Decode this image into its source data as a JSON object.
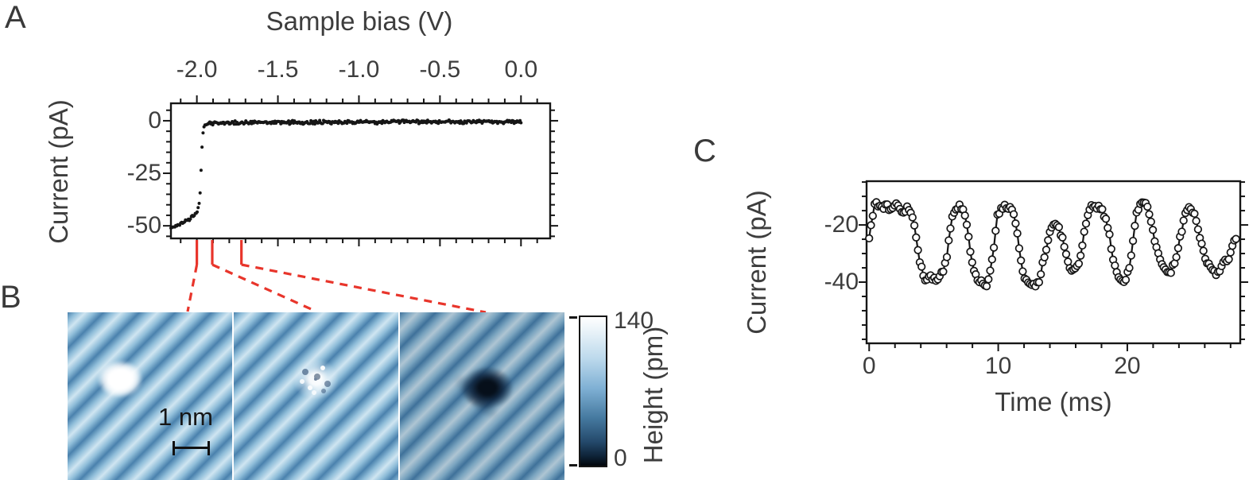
{
  "panels": {
    "a": {
      "label": "A",
      "title": "Sample bias (V)",
      "ylabel": "Current (pA)"
    },
    "b": {
      "label": "B",
      "scalebar": "1 nm",
      "colorbar_max": "140",
      "colorbar_min": "0",
      "colorbar_label": "Height (pm)"
    },
    "c": {
      "label": "C",
      "ylabel": "Current (pA)",
      "xlabel": "Time (ms)"
    }
  },
  "colors": {
    "accent_red": "#e8352b",
    "ink": "#161616",
    "label_gray": "#3d3d3d"
  },
  "annotations": {
    "bias_marks": [
      -2.0,
      -1.905,
      -1.725
    ]
  },
  "chart_data": [
    {
      "type": "scatter",
      "panel": "A",
      "title": "Sample bias (V)",
      "xlabel": "Sample bias (V)",
      "ylabel": "Current (pA)",
      "xlim": [
        -2.16,
        0.18
      ],
      "ylim": [
        -56.0,
        8.3
      ],
      "x_ticks": [
        -2.0,
        -1.5,
        -1.0,
        -0.5,
        0.0
      ],
      "x_tick_labels": [
        "-2.0",
        "-1.5",
        "-1.0",
        "-0.5",
        "0.0"
      ],
      "y_ticks": [
        0,
        -25,
        -50
      ],
      "y_tick_labels": [
        "0",
        "-25",
        "-50"
      ],
      "x_minor_step": 0.1,
      "y_minor_step": 5,
      "marker": "dot",
      "connect": false,
      "noise": 0.55,
      "sample_step": 0.006,
      "series_anchors": [
        [
          -2.16,
          -51.0
        ],
        [
          -2.14,
          -50.3
        ],
        [
          -2.12,
          -49.8
        ],
        [
          -2.1,
          -49.2
        ],
        [
          -2.08,
          -48.3
        ],
        [
          -2.06,
          -47.6
        ],
        [
          -2.04,
          -46.6
        ],
        [
          -2.02,
          -45.4
        ],
        [
          -2.0,
          -43.6
        ],
        [
          -1.995,
          -42.4
        ],
        [
          -1.99,
          -41.2
        ],
        [
          -1.985,
          -39.6
        ],
        [
          -1.982,
          -37.0
        ],
        [
          -1.979,
          -33.0
        ],
        [
          -1.976,
          -28.0
        ],
        [
          -1.973,
          -22.0
        ],
        [
          -1.97,
          -16.0
        ],
        [
          -1.967,
          -10.5
        ],
        [
          -1.963,
          -6.0
        ],
        [
          -1.958,
          -3.2
        ],
        [
          -1.95,
          -1.8
        ],
        [
          -1.92,
          -1.2
        ],
        [
          -1.85,
          -0.9
        ],
        [
          -1.6,
          -0.8
        ],
        [
          -1.2,
          -0.7
        ],
        [
          -0.8,
          -0.6
        ],
        [
          -0.4,
          -0.5
        ],
        [
          0.0,
          -0.4
        ]
      ]
    },
    {
      "type": "scatter-line",
      "panel": "C",
      "title": "",
      "xlabel": "Time (ms)",
      "ylabel": "Current (pA)",
      "xlim": [
        -0.2,
        28.75
      ],
      "ylim": [
        -61.4,
        -4.7
      ],
      "x_ticks": [
        0,
        10,
        20
      ],
      "x_tick_labels": [
        "0",
        "10",
        "20"
      ],
      "y_ticks": [
        -20,
        -40
      ],
      "y_tick_labels": [
        "-20",
        "-40"
      ],
      "x_minor_step": 2,
      "y_minor_step": 5,
      "marker": "open-circle",
      "connect": true,
      "noise": 0.8,
      "sample_step": 0.14,
      "series_anchors": [
        [
          0,
          -24
        ],
        [
          0.2,
          -18
        ],
        [
          0.4,
          -13.5
        ],
        [
          0.7,
          -12.5
        ],
        [
          1.0,
          -14
        ],
        [
          1.3,
          -13
        ],
        [
          1.6,
          -15
        ],
        [
          1.9,
          -14
        ],
        [
          2.2,
          -13
        ],
        [
          2.5,
          -15
        ],
        [
          2.8,
          -14
        ],
        [
          3.1,
          -15
        ],
        [
          3.4,
          -17
        ],
        [
          3.7,
          -26
        ],
        [
          4.0,
          -35
        ],
        [
          4.2,
          -38
        ],
        [
          4.5,
          -39
        ],
        [
          4.8,
          -38
        ],
        [
          5.1,
          -40
        ],
        [
          5.4,
          -39
        ],
        [
          5.7,
          -37
        ],
        [
          6.0,
          -31
        ],
        [
          6.3,
          -20
        ],
        [
          6.6,
          -15
        ],
        [
          6.9,
          -13.5
        ],
        [
          7.2,
          -14
        ],
        [
          7.5,
          -17
        ],
        [
          7.8,
          -28
        ],
        [
          8.1,
          -36
        ],
        [
          8.4,
          -39
        ],
        [
          8.7,
          -40
        ],
        [
          9.0,
          -41
        ],
        [
          9.3,
          -39
        ],
        [
          9.6,
          -30
        ],
        [
          9.9,
          -18
        ],
        [
          10.2,
          -13.5
        ],
        [
          10.5,
          -13
        ],
        [
          10.8,
          -14
        ],
        [
          11.1,
          -15
        ],
        [
          11.4,
          -20
        ],
        [
          11.7,
          -31
        ],
        [
          12.0,
          -38
        ],
        [
          12.3,
          -40
        ],
        [
          12.6,
          -41
        ],
        [
          12.9,
          -41.5
        ],
        [
          13.2,
          -39
        ],
        [
          13.5,
          -33
        ],
        [
          13.8,
          -26
        ],
        [
          14.1,
          -21
        ],
        [
          14.4,
          -19.5
        ],
        [
          14.7,
          -21
        ],
        [
          15.0,
          -25
        ],
        [
          15.3,
          -31
        ],
        [
          15.6,
          -35
        ],
        [
          15.9,
          -36.5
        ],
        [
          16.2,
          -35
        ],
        [
          16.5,
          -28
        ],
        [
          16.8,
          -19
        ],
        [
          17.1,
          -14
        ],
        [
          17.4,
          -13
        ],
        [
          17.7,
          -13.5
        ],
        [
          18.0,
          -14.5
        ],
        [
          18.3,
          -17
        ],
        [
          18.6,
          -24
        ],
        [
          18.9,
          -32
        ],
        [
          19.2,
          -37
        ],
        [
          19.5,
          -39
        ],
        [
          19.8,
          -39.5
        ],
        [
          20.1,
          -36
        ],
        [
          20.4,
          -27
        ],
        [
          20.7,
          -17
        ],
        [
          21.0,
          -12.5
        ],
        [
          21.3,
          -12
        ],
        [
          21.6,
          -14
        ],
        [
          21.9,
          -19
        ],
        [
          22.2,
          -27
        ],
        [
          22.5,
          -32
        ],
        [
          22.8,
          -35
        ],
        [
          23.1,
          -37
        ],
        [
          23.4,
          -36
        ],
        [
          23.7,
          -32
        ],
        [
          24.0,
          -27
        ],
        [
          24.3,
          -20
        ],
        [
          24.6,
          -15
        ],
        [
          24.9,
          -14
        ],
        [
          25.2,
          -16
        ],
        [
          25.5,
          -21
        ],
        [
          25.8,
          -28
        ],
        [
          26.1,
          -33
        ],
        [
          26.4,
          -35
        ],
        [
          26.7,
          -37
        ],
        [
          27.0,
          -36
        ],
        [
          27.3,
          -34
        ],
        [
          27.6,
          -33
        ],
        [
          27.9,
          -31
        ],
        [
          28.2,
          -27
        ],
        [
          28.5,
          -23
        ]
      ]
    }
  ]
}
